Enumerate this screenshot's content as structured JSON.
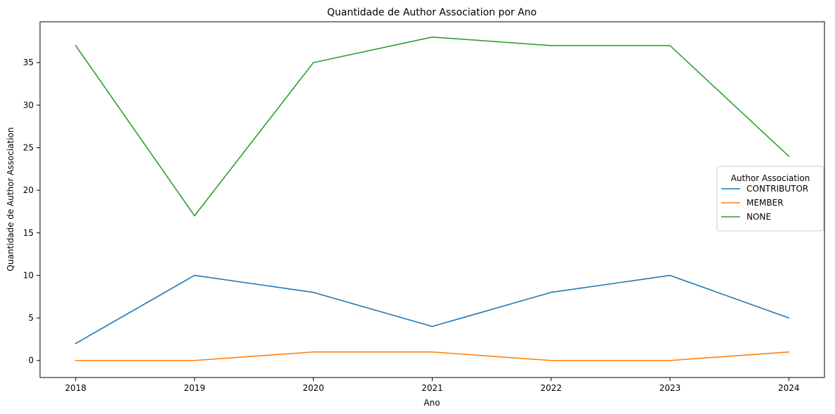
{
  "chart_data": {
    "type": "line",
    "title": "Quantidade de Author Association por Ano",
    "xlabel": "Ano",
    "ylabel": "Quantidade de Author Association",
    "x": [
      "2018",
      "2019",
      "2020",
      "2021",
      "2022",
      "2023",
      "2024"
    ],
    "xlim": [
      2017.7,
      2024.3
    ],
    "ylim": [
      -2,
      39.8
    ],
    "yticks": [
      0,
      5,
      10,
      15,
      20,
      25,
      30,
      35
    ],
    "grid": false,
    "legend": {
      "title": "Author Association",
      "placement": "center-right"
    },
    "series": [
      {
        "name": "CONTRIBUTOR",
        "color": "#1f77b4",
        "values": [
          2,
          10,
          8,
          4,
          8,
          10,
          5
        ]
      },
      {
        "name": "MEMBER",
        "color": "#ff7f0e",
        "values": [
          0,
          0,
          1,
          1,
          0,
          0,
          1
        ]
      },
      {
        "name": "NONE",
        "color": "#2ca02c",
        "values": [
          37,
          17,
          35,
          38,
          37,
          37,
          24
        ]
      }
    ]
  }
}
